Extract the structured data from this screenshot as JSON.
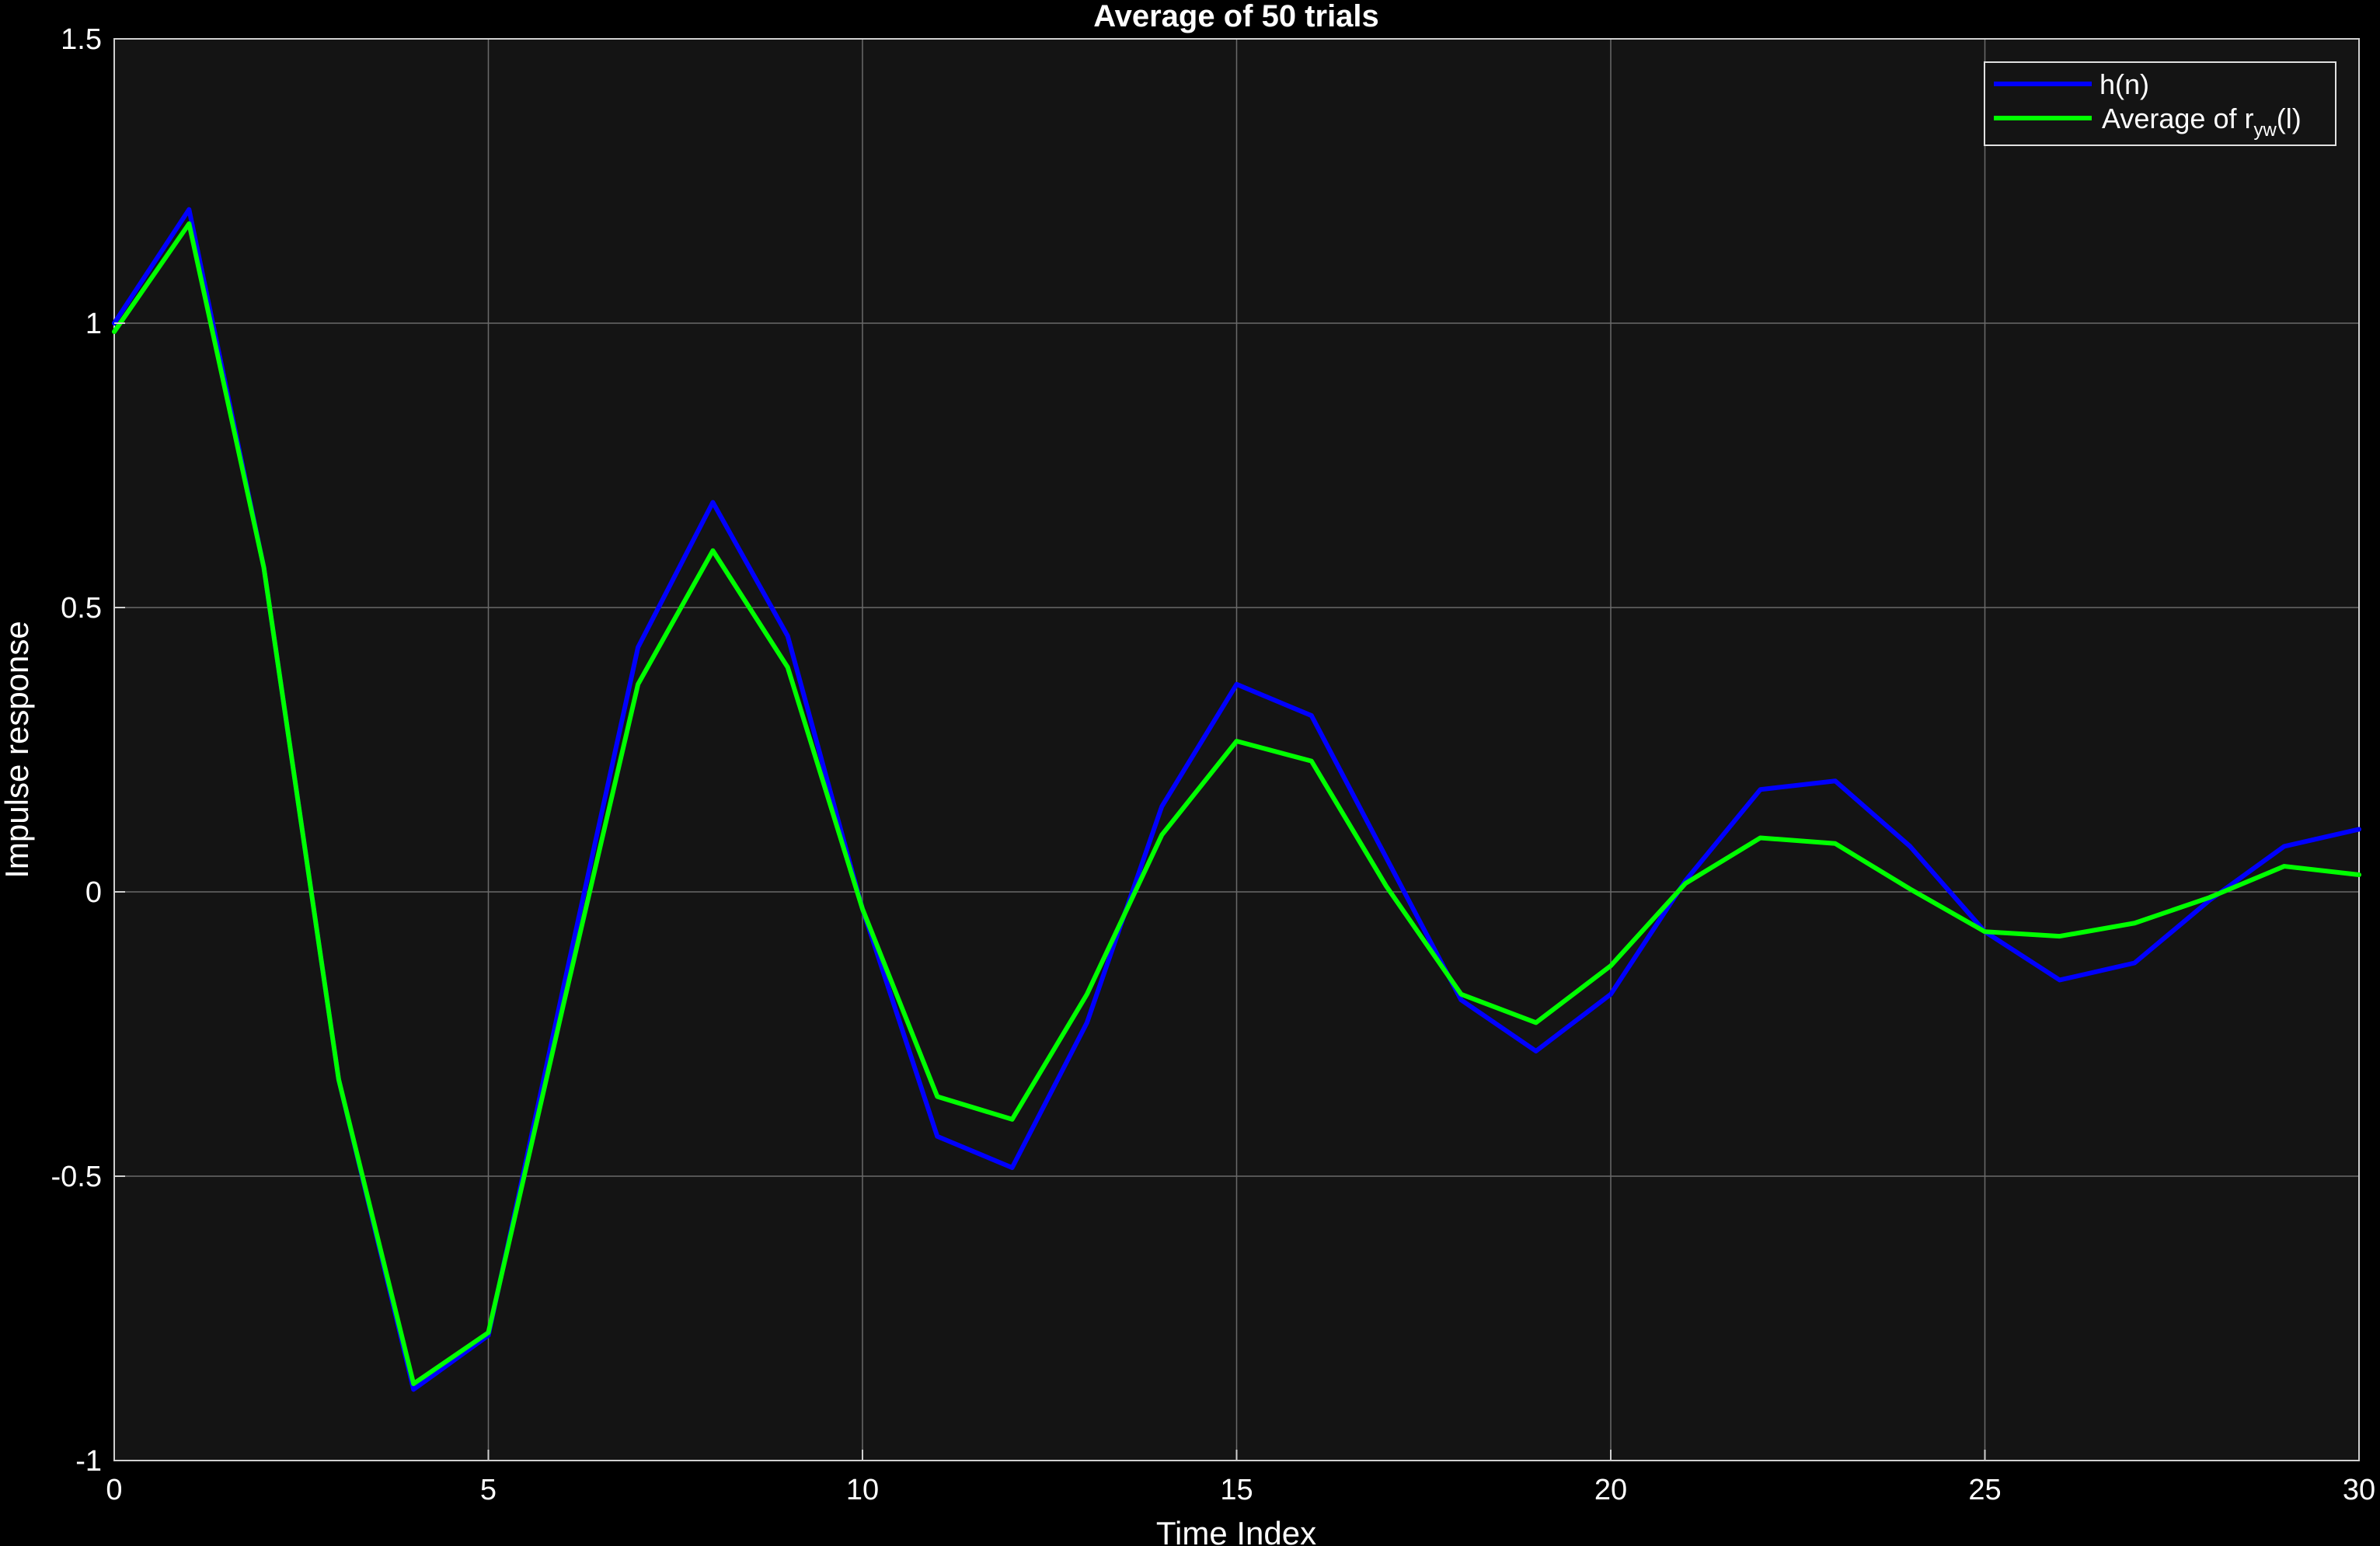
{
  "chart_data": {
    "type": "line",
    "title": "Average of 50 trials",
    "xlabel": "Time Index",
    "ylabel": "Impulse response",
    "xlim": [
      0,
      30
    ],
    "ylim": [
      -1,
      1.5
    ],
    "xticks": [
      0,
      5,
      10,
      15,
      20,
      25,
      30
    ],
    "yticks": [
      -1,
      -0.5,
      0,
      0.5,
      1,
      1.5
    ],
    "xtick_labels": [
      "0",
      "5",
      "10",
      "15",
      "20",
      "25",
      "30"
    ],
    "ytick_labels": [
      "-1",
      "-0.5",
      "0",
      "0.5",
      "1",
      "1.5"
    ],
    "grid": true,
    "legend_position": "top-right",
    "background_color": "#141414",
    "figure_color": "#000000",
    "x": [
      0,
      1,
      2,
      3,
      4,
      5,
      6,
      7,
      8,
      9,
      10,
      11,
      12,
      13,
      14,
      15,
      16,
      17,
      18,
      19,
      20,
      21,
      22,
      23,
      24,
      25,
      26,
      27,
      28,
      29,
      30
    ],
    "series": [
      {
        "name": "h(n)",
        "color": "#0000ff",
        "values": [
          1.0,
          1.2,
          0.57,
          -0.33,
          -0.875,
          -0.78,
          -0.17,
          0.43,
          0.685,
          0.45,
          -0.03,
          -0.43,
          -0.485,
          -0.23,
          0.15,
          0.365,
          0.31,
          0.06,
          -0.19,
          -0.28,
          -0.18,
          0.02,
          0.18,
          0.195,
          0.08,
          -0.07,
          -0.155,
          -0.125,
          -0.015,
          0.08,
          0.11
        ]
      },
      {
        "name": "Average of r_yw(l)",
        "color": "#00ff00",
        "values": [
          0.985,
          1.175,
          0.57,
          -0.33,
          -0.865,
          -0.775,
          -0.2,
          0.365,
          0.6,
          0.395,
          -0.03,
          -0.36,
          -0.4,
          -0.18,
          0.1,
          0.265,
          0.23,
          0.01,
          -0.18,
          -0.23,
          -0.13,
          0.015,
          0.095,
          0.085,
          0.005,
          -0.07,
          -0.078,
          -0.055,
          -0.01,
          0.045,
          0.03
        ]
      }
    ],
    "legend": {
      "entries": [
        {
          "text": "h(n)"
        },
        {
          "main": "Average  of  r",
          "sub": "yw",
          "tail": "(l)"
        }
      ]
    }
  }
}
